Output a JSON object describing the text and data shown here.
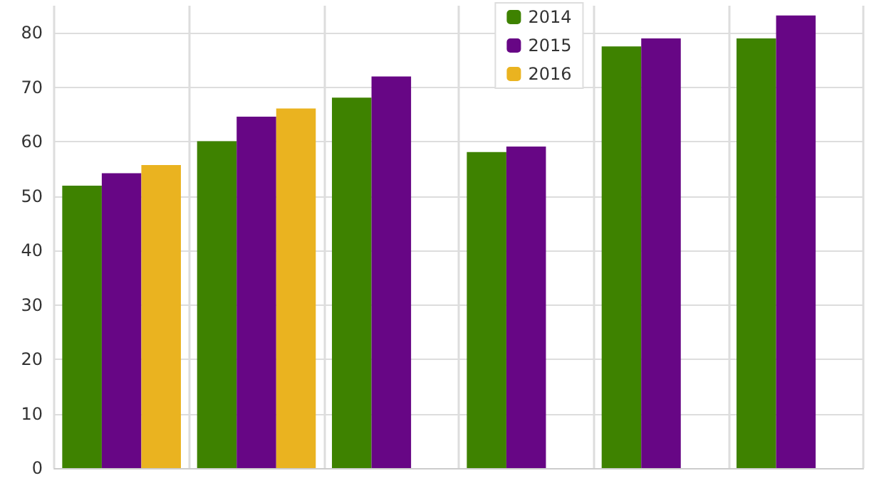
{
  "chart_data": {
    "type": "bar",
    "categories": [
      null,
      null,
      null,
      null,
      null,
      null
    ],
    "series": [
      {
        "name": "2014",
        "color": "#3e8200",
        "values": [
          51.9,
          60.1,
          68.1,
          58.1,
          77.5,
          79.0
        ]
      },
      {
        "name": "2015",
        "color": "#670685",
        "values": [
          54.2,
          64.6,
          72.0,
          59.1,
          79.0,
          83.2
        ]
      },
      {
        "name": "2016",
        "color": "#eab320",
        "values": [
          55.7,
          66.1,
          null,
          null,
          null,
          null
        ]
      }
    ],
    "ylim": [
      0,
      85
    ],
    "yticks": [
      0,
      10,
      20,
      30,
      40,
      50,
      60,
      70,
      80
    ],
    "grid": true,
    "legend": "top"
  }
}
